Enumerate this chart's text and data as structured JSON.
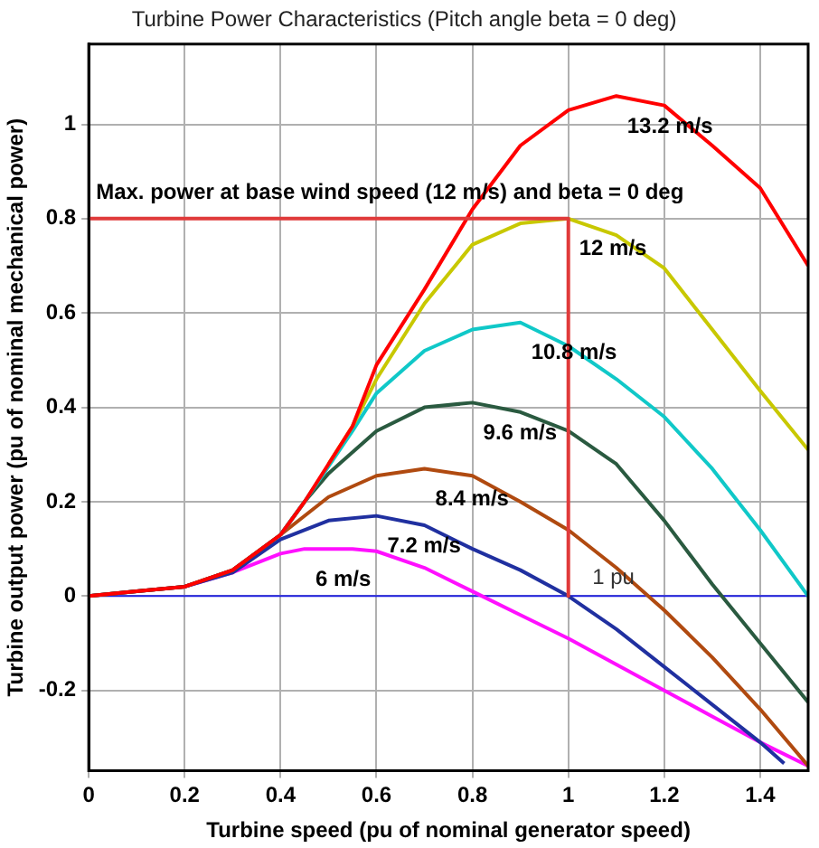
{
  "chart_data": {
    "type": "line",
    "title": "Turbine Power Characteristics (Pitch angle beta = 0 deg)",
    "xlabel": "Turbine speed (pu of nominal generator speed)",
    "ylabel": "Turbine output power (pu of nominal mechanical power)",
    "xlim": [
      0,
      1.5
    ],
    "ylim": [
      -0.37,
      1.17
    ],
    "xticks": [
      0,
      0.2,
      0.4,
      0.6,
      0.8,
      1,
      1.2,
      1.4
    ],
    "yticks": [
      -0.2,
      0,
      0.2,
      0.4,
      0.6,
      0.8,
      1
    ],
    "grid": true,
    "legend": false,
    "marker": "none",
    "line_style": "solid",
    "ref_lines": [
      {
        "axis": "y",
        "value": 0,
        "color": "#2020e0"
      }
    ],
    "annotations": [
      "Max. power at base wind speed (12 m/s) and beta = 0 deg",
      "1 pu"
    ],
    "series": [
      {
        "type": "line",
        "color": "#e03a3a",
        "x": [
          0,
          1,
          1
        ],
        "values": [
          0.8,
          0.8,
          0
        ]
      },
      {
        "name": "13.2 m/s",
        "color": "#ff0000",
        "x": [
          0,
          0.1,
          0.2,
          0.3,
          0.4,
          0.45,
          0.5,
          0.55,
          0.6,
          0.7,
          0.8,
          0.9,
          1,
          1.1,
          1.2,
          1.3,
          1.4,
          1.5
        ],
        "values": [
          0,
          0.01,
          0.02,
          0.055,
          0.13,
          0.2,
          0.28,
          0.36,
          0.49,
          0.65,
          0.82,
          0.955,
          1.03,
          1.06,
          1.04,
          0.955,
          0.865,
          0.7
        ]
      },
      {
        "name": "12 m/s",
        "color": "#c8c800",
        "x": [
          0.5,
          0.55,
          0.6,
          0.7,
          0.8,
          0.9,
          1,
          1.1,
          1.2,
          1.3,
          1.4,
          1.5
        ],
        "values": [
          0.28,
          0.36,
          0.46,
          0.62,
          0.745,
          0.79,
          0.8,
          0.765,
          0.695,
          0.565,
          0.435,
          0.31
        ]
      },
      {
        "name": "10.8 m/s",
        "color": "#10c8c8",
        "x": [
          0.4,
          0.45,
          0.5,
          0.55,
          0.6,
          0.7,
          0.8,
          0.9,
          1,
          1.1,
          1.2,
          1.3,
          1.4,
          1.5
        ],
        "values": [
          0.13,
          0.2,
          0.275,
          0.35,
          0.43,
          0.52,
          0.565,
          0.58,
          0.53,
          0.46,
          0.38,
          0.27,
          0.14,
          0
        ]
      },
      {
        "name": "9.6 m/s",
        "color": "#2a5a40",
        "x": [
          0,
          0.1,
          0.2,
          0.3,
          0.4,
          0.45,
          0.5,
          0.6,
          0.7,
          0.8,
          0.9,
          1,
          1.1,
          1.2,
          1.3,
          1.4,
          1.5
        ],
        "values": [
          0,
          0.01,
          0.02,
          0.055,
          0.13,
          0.2,
          0.26,
          0.35,
          0.4,
          0.41,
          0.39,
          0.35,
          0.28,
          0.16,
          0.025,
          -0.1,
          -0.225
        ]
      },
      {
        "name": "8.4 m/s",
        "color": "#b04a10",
        "x": [
          0,
          0.1,
          0.2,
          0.3,
          0.4,
          0.5,
          0.6,
          0.7,
          0.8,
          0.9,
          1,
          1.1,
          1.2,
          1.3,
          1.4,
          1.5
        ],
        "values": [
          0,
          0.01,
          0.02,
          0.055,
          0.13,
          0.21,
          0.255,
          0.27,
          0.255,
          0.2,
          0.14,
          0.06,
          -0.03,
          -0.13,
          -0.24,
          -0.36
        ]
      },
      {
        "name": "7.2 m/s",
        "color": "#2030a0",
        "x": [
          0,
          0.1,
          0.2,
          0.3,
          0.4,
          0.5,
          0.6,
          0.7,
          0.8,
          0.9,
          1,
          1.1,
          1.2,
          1.3,
          1.4,
          1.45
        ],
        "values": [
          0,
          0.01,
          0.02,
          0.05,
          0.12,
          0.16,
          0.17,
          0.15,
          0.1,
          0.055,
          0,
          -0.07,
          -0.15,
          -0.23,
          -0.31,
          -0.355
        ]
      },
      {
        "name": "6 m/s",
        "color": "#ff10ff",
        "x": [
          0.2,
          0.3,
          0.4,
          0.45,
          0.5,
          0.55,
          0.6,
          0.7,
          0.8,
          0.9,
          1,
          1.1,
          1.2,
          1.3,
          1.4,
          1.5
        ],
        "values": [
          0.02,
          0.05,
          0.09,
          0.1,
          0.1,
          0.1,
          0.095,
          0.06,
          0.01,
          -0.04,
          -0.09,
          -0.145,
          -0.2,
          -0.255,
          -0.31,
          -0.36
        ]
      }
    ]
  }
}
